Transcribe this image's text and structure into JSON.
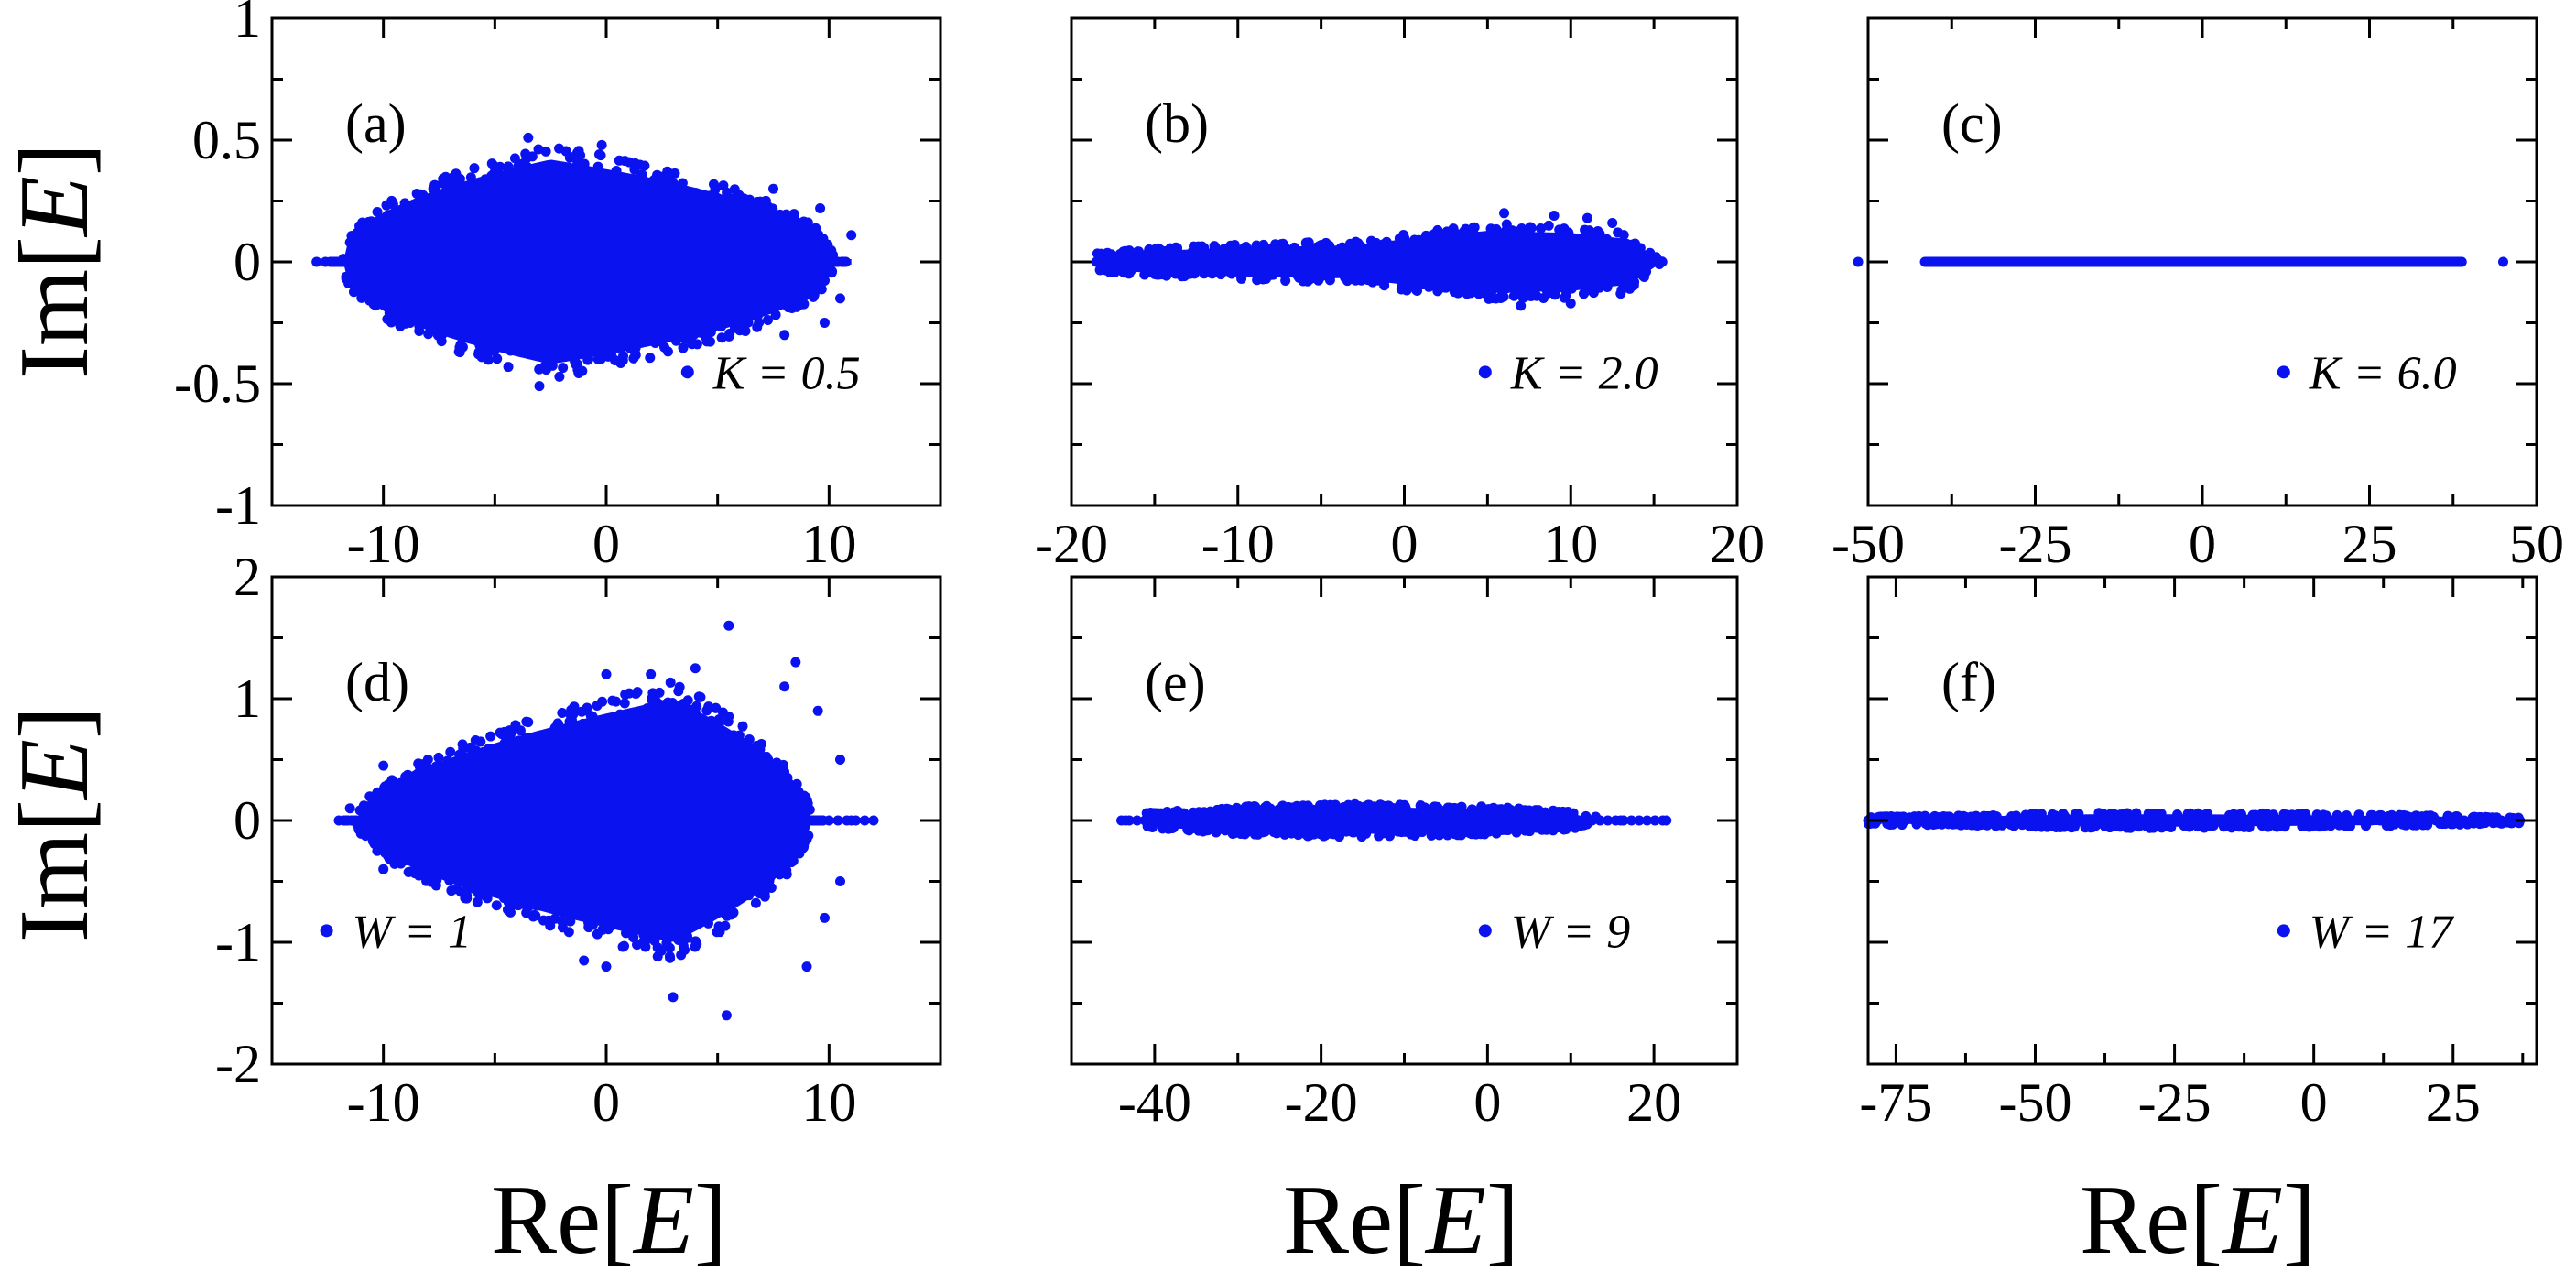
{
  "figure": {
    "ylabel": {
      "prefix": "Im[",
      "var": "E",
      "suffix": "]"
    },
    "xlabel": {
      "prefix": "Re[",
      "var": "E",
      "suffix": "]"
    },
    "point_color": "#0a12f0"
  },
  "chart_data": [
    {
      "id": "a",
      "label": "(a)",
      "type": "scatter",
      "legend": {
        "param": "K",
        "value": "0.5",
        "text": "K = 0.5"
      },
      "xlim": [
        -15,
        15
      ],
      "ylim": [
        -1,
        1
      ],
      "xticks": [
        -10,
        0,
        10
      ],
      "xticklabels": [
        "-10",
        "0",
        "10"
      ],
      "yticks": [
        -1,
        -0.5,
        0,
        0.5,
        1
      ],
      "yticklabels": [
        "-1",
        "-0.5",
        "0",
        "0.5",
        "1"
      ],
      "cloud": {
        "xmin": -11.8,
        "xmax": 10.2,
        "xpeak": -2.5,
        "ymax": 0.42,
        "ymin": -0.42,
        "power": 0.45,
        "tail": [
          -13,
          11
        ]
      },
      "outliers": [
        [
          -3.5,
          0.51
        ],
        [
          -3.0,
          -0.51
        ],
        [
          -0.2,
          0.48
        ],
        [
          9.6,
          0.22
        ],
        [
          11.0,
          0.11
        ],
        [
          10.5,
          -0.15
        ],
        [
          9.8,
          -0.25
        ],
        [
          -11.5,
          0.08
        ],
        [
          -10.5,
          -0.12
        ],
        [
          7.5,
          0.3
        ],
        [
          8.0,
          -0.3
        ],
        [
          -8.5,
          0.28
        ],
        [
          -8.8,
          -0.25
        ]
      ]
    },
    {
      "id": "b",
      "label": "(b)",
      "type": "scatter",
      "legend": {
        "param": "K",
        "value": "2.0",
        "text": "K = 2.0"
      },
      "xlim": [
        -20,
        20
      ],
      "ylim": [
        -1,
        1
      ],
      "xticks": [
        -20,
        -10,
        0,
        10,
        20
      ],
      "xticklabels": [
        "-20",
        "-10",
        "0",
        "10",
        "20"
      ],
      "yticks": [
        -1,
        -0.5,
        0,
        0.5,
        1
      ],
      "yticklabels": [],
      "profile": [
        [
          -18.5,
          0.04
        ],
        [
          -10,
          0.07
        ],
        [
          -3,
          0.08
        ],
        [
          0,
          0.11
        ],
        [
          5,
          0.15
        ],
        [
          10,
          0.14
        ],
        [
          13.5,
          0.11
        ],
        [
          15.5,
          0.0
        ]
      ],
      "tail": [
        -18.5,
        15.5
      ],
      "outliers": [
        [
          6,
          0.2
        ],
        [
          9,
          0.19
        ],
        [
          11,
          0.18
        ],
        [
          12.5,
          0.16
        ],
        [
          7,
          -0.18
        ],
        [
          10,
          -0.17
        ],
        [
          13,
          -0.13
        ],
        [
          2,
          0.13
        ],
        [
          2,
          -0.12
        ],
        [
          -15,
          0.05
        ],
        [
          -15,
          -0.05
        ]
      ]
    },
    {
      "id": "c",
      "label": "(c)",
      "type": "scatter",
      "legend": {
        "param": "K",
        "value": "6.0",
        "text": "K = 6.0"
      },
      "xlim": [
        -50,
        50
      ],
      "ylim": [
        -1,
        1
      ],
      "xticks": [
        -50,
        -25,
        0,
        25,
        50
      ],
      "xticklabels": [
        "-50",
        "-25",
        "0",
        "25",
        "50"
      ],
      "yticks": [
        -1,
        -0.5,
        0,
        0.5,
        1
      ],
      "yticklabels": [],
      "line": [
        -41.5,
        38.8
      ],
      "outliers": [
        [
          -51.5,
          0
        ],
        [
          45,
          0
        ]
      ]
    },
    {
      "id": "d",
      "label": "(d)",
      "type": "scatter",
      "legend": {
        "param": "W",
        "value": "1",
        "text": "W = 1"
      },
      "xlim": [
        -15,
        15
      ],
      "ylim": [
        -2,
        2
      ],
      "xticks": [
        -10,
        0,
        10
      ],
      "xticklabels": [
        "-10",
        "0",
        "10"
      ],
      "yticks": [
        -2,
        -1,
        0,
        1,
        2
      ],
      "yticklabels": [
        "-2",
        "-1",
        "0",
        "1",
        "2"
      ],
      "cloud": {
        "xmin": -11.2,
        "xmax": 9.2,
        "xpeak": 3.0,
        "ymax": 1.0,
        "ymin": -1.0,
        "power": 0.55,
        "tail": [
          -12,
          12
        ]
      },
      "outliers": [
        [
          5.5,
          1.6
        ],
        [
          5.4,
          -1.6
        ],
        [
          0,
          1.2
        ],
        [
          4.0,
          1.25
        ],
        [
          8.5,
          1.3
        ],
        [
          9.0,
          -1.2
        ],
        [
          3.0,
          -1.45
        ],
        [
          0,
          -1.2
        ],
        [
          -1,
          -1.15
        ],
        [
          10.5,
          0.5
        ],
        [
          10.5,
          -0.5
        ],
        [
          11.0,
          0
        ],
        [
          12.0,
          0
        ],
        [
          -11.5,
          0.1
        ],
        [
          -10,
          0.45
        ],
        [
          -10,
          -0.4
        ],
        [
          9.5,
          0.9
        ],
        [
          9.8,
          -0.8
        ],
        [
          8,
          1.1
        ],
        [
          2,
          1.2
        ]
      ]
    },
    {
      "id": "e",
      "label": "(e)",
      "type": "scatter",
      "legend": {
        "param": "W",
        "value": "9",
        "text": "W = 9"
      },
      "xlim": [
        -50,
        30
      ],
      "ylim": [
        -2,
        2
      ],
      "xticks": [
        -40,
        -20,
        0,
        20
      ],
      "xticklabels": [
        "-40",
        "-20",
        "0",
        "20"
      ],
      "yticks": [
        -2,
        -1,
        0,
        1,
        2
      ],
      "yticklabels": [],
      "profile": [
        [
          -41,
          0.06
        ],
        [
          -30,
          0.11
        ],
        [
          -15,
          0.13
        ],
        [
          0,
          0.11
        ],
        [
          10,
          0.07
        ],
        [
          12,
          0.03
        ]
      ],
      "tail": [
        -44,
        22
      ],
      "outliers": [
        [
          -43.5,
          0
        ],
        [
          21.5,
          0
        ],
        [
          16,
          0
        ],
        [
          13,
          0.03
        ]
      ]
    },
    {
      "id": "f",
      "label": "(f)",
      "type": "scatter",
      "legend": {
        "param": "W",
        "value": "17",
        "text": "W = 17"
      },
      "xlim": [
        -80,
        40
      ],
      "ylim": [
        -2,
        2
      ],
      "xticks": [
        -75,
        -50,
        -25,
        0,
        25
      ],
      "xticklabels": [
        "-75",
        "-50",
        "-25",
        "0",
        "25"
      ],
      "yticks": [
        -2,
        -1,
        0,
        1,
        2
      ],
      "yticklabels": [],
      "profile": [
        [
          -80,
          0.03
        ],
        [
          -60,
          0.04
        ],
        [
          -40,
          0.06
        ],
        [
          -20,
          0.06
        ],
        [
          0,
          0.05
        ],
        [
          20,
          0.04
        ],
        [
          37,
          0.02
        ]
      ],
      "tail": [
        -80,
        37
      ],
      "outliers": [
        [
          -64,
          0
        ],
        [
          -55,
          0
        ],
        [
          -35,
          0
        ],
        [
          37,
          0
        ]
      ]
    }
  ]
}
